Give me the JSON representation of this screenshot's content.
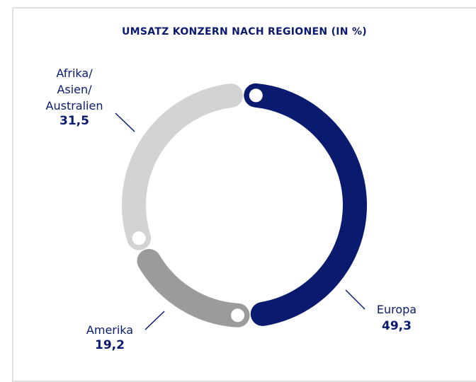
{
  "chart_data": {
    "type": "donut",
    "title": "UMSATZ KONZERN NACH REGIONEN (IN %)",
    "categories": [
      "Europa",
      "Amerika",
      "Afrika/\nAsien/\nAustralien"
    ],
    "values": [
      49.3,
      19.2,
      31.5
    ],
    "value_labels": [
      "49,3",
      "19,2",
      "31,5"
    ],
    "colors": [
      "#0a1a6e",
      "#9b9b9b",
      "#d3d3d3"
    ]
  }
}
